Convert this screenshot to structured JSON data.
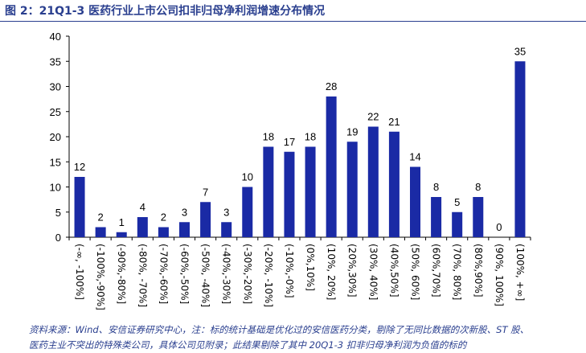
{
  "title": "图 2：21Q1-3 医药行业上市公司扣非归母净利润增速分布情况",
  "source": [
    "资料来源：Wind、安信证券研究中心，注：标的统计基础是优化过的安信医药分类，剔除了无同比数据的次新股、ST 股、",
    "医药主业不突出的特殊类公司，具体公司见附录；此结果剔除了其中 20Q1-3 扣非归母净利润为负值的标的"
  ],
  "chart_data": {
    "type": "bar",
    "title": "",
    "xlabel": "",
    "ylabel": "",
    "ylim": [
      0,
      40
    ],
    "yticks": [
      0,
      5,
      10,
      15,
      20,
      25,
      30,
      35,
      40
    ],
    "grid": false,
    "legend": "none",
    "bar_color": "#1a2aa5",
    "categories": [
      "(-∞, -100%]",
      "(-100%,-90%]",
      "(-90%,-80%]",
      "(-80%, -70%]",
      "(-70%,-60%]",
      "(-60%,-50%]",
      "(-50%, -40%]",
      "(-40%,-30%]",
      "(-30%,-20%]",
      "(-20%, -10%]",
      "(-10%,-0%]",
      "(0%,10%]",
      "(10%, 20%]",
      "(20%,30%]",
      "(30%, 40%]",
      "(40%,50%]",
      "(50%, 60%]",
      "(60%,70%]",
      "(70%, 80%]",
      "(80%,90%]",
      "(90%, 100%]",
      "(100%, +∞]"
    ],
    "values": [
      12,
      2,
      1,
      4,
      2,
      3,
      7,
      3,
      10,
      18,
      17,
      18,
      28,
      19,
      22,
      21,
      14,
      8,
      5,
      8,
      0,
      35
    ]
  }
}
